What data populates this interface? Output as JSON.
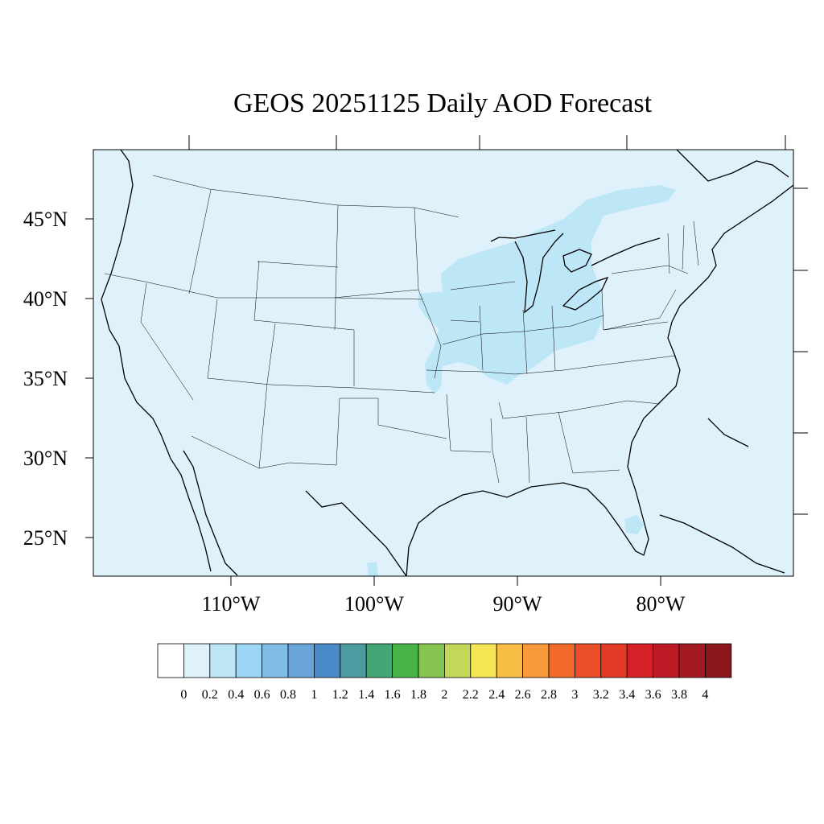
{
  "title": "GEOS 20251125 Daily AOD Forecast",
  "lat_labels": [
    "45°N",
    "40°N",
    "35°N",
    "30°N",
    "25°N"
  ],
  "lon_labels": [
    "110°W",
    "100°W",
    "90°W",
    "80°W"
  ],
  "colorbar": {
    "labels": [
      "0",
      "0.2",
      "0.4",
      "0.6",
      "0.8",
      "1",
      "1.2",
      "1.4",
      "1.6",
      "1.8",
      "2",
      "2.2",
      "2.4",
      "2.6",
      "2.8",
      "3",
      "3.2",
      "3.4",
      "3.6",
      "3.8",
      "4"
    ],
    "colors": [
      "#ffffff",
      "#dff2fb",
      "#bde6f7",
      "#9dd6f4",
      "#82bde5",
      "#69a5d9",
      "#4a8ac8",
      "#4b9ba0",
      "#45a575",
      "#48b347",
      "#86c54f",
      "#c3d758",
      "#f6e655",
      "#f7bd45",
      "#f79a3b",
      "#f26a2b",
      "#eb4f2a",
      "#e23a27",
      "#d42027",
      "#bc1b25",
      "#a31a21",
      "#8b161c"
    ]
  },
  "chart_data": {
    "type": "heatmap",
    "title": "GEOS 20251125 Daily AOD Forecast",
    "variable": "AOD",
    "date": "20251125",
    "lon_range": [
      -119,
      -71
    ],
    "lat_range": [
      22.8,
      49.5
    ],
    "lat_ticks": [
      45,
      40,
      35,
      30,
      25
    ],
    "lon_ticks": [
      -110,
      -100,
      -90,
      -80
    ],
    "levels": [
      0,
      0.2,
      0.4,
      0.6,
      0.8,
      1,
      1.2,
      1.4,
      1.6,
      1.8,
      2,
      2.2,
      2.4,
      2.6,
      2.8,
      3,
      3.2,
      3.4,
      3.6,
      3.8,
      4
    ],
    "background_value_range": [
      0.2,
      0.4
    ],
    "elevated_regions": [
      {
        "region": "Illinois-Indiana-Ohio-Michigan",
        "value_range": [
          0.4,
          0.6
        ]
      },
      {
        "region": "Lake Huron-Ontario-Quebec",
        "value_range": [
          0.4,
          0.6
        ]
      },
      {
        "region": "Iowa-Missouri",
        "value_range": [
          0.4,
          0.6
        ]
      },
      {
        "region": "South Florida",
        "value_range": [
          0.4,
          0.6
        ]
      }
    ]
  }
}
